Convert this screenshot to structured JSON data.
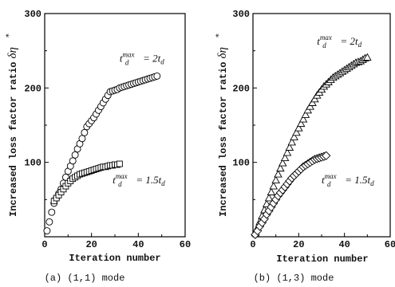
{
  "chart_data": [
    {
      "type": "scatter",
      "panel": "a",
      "caption": "(a) (1,1) mode",
      "xlabel": "Iteration number",
      "ylabel": "Increased loss factor ratio",
      "ylabel_symbol": "δη",
      "ylabel_mark": "*",
      "xlim": [
        0,
        60
      ],
      "ylim": [
        0,
        300
      ],
      "xticks": [
        "0",
        "20",
        "40",
        "60"
      ],
      "yticks": [
        "100",
        "200",
        "300"
      ],
      "grid": false,
      "series": [
        {
          "marker": "circle",
          "annotation_label": "2t_d",
          "x": [
            1,
            2,
            3,
            4,
            5,
            6,
            7,
            8,
            9,
            10,
            11,
            12,
            13,
            14,
            15,
            16,
            17,
            18,
            19,
            20,
            21,
            22,
            23,
            24,
            25,
            26,
            27,
            28,
            29,
            30,
            31,
            32,
            33,
            34,
            35,
            36,
            37,
            38,
            39,
            40,
            41,
            42,
            43,
            44,
            45,
            46,
            47,
            48
          ],
          "y": [
            8,
            20,
            33,
            45,
            52,
            58,
            64,
            72,
            80,
            88,
            95,
            102,
            110,
            118,
            125,
            132,
            140,
            148,
            152,
            156,
            160,
            165,
            170,
            175,
            180,
            185,
            190,
            195,
            196,
            197,
            198,
            200,
            201,
            202,
            203,
            204,
            205,
            206,
            207,
            208,
            209,
            210,
            211,
            212,
            213,
            214,
            215,
            216
          ]
        },
        {
          "marker": "square",
          "annotation_label": "1.5t_d",
          "x": [
            4,
            5,
            6,
            7,
            8,
            9,
            10,
            11,
            12,
            13,
            14,
            15,
            16,
            17,
            18,
            19,
            20,
            21,
            22,
            23,
            24,
            25,
            26,
            27,
            28,
            29,
            30,
            31,
            32
          ],
          "y": [
            48,
            52,
            56,
            60,
            64,
            68,
            72,
            75,
            78,
            80,
            82,
            84,
            85,
            86,
            87,
            88,
            89,
            90,
            91,
            92,
            93,
            94,
            94,
            95,
            96,
            96,
            97,
            97,
            98
          ]
        }
      ],
      "annotations": [
        {
          "base": "t",
          "sub": "d",
          "sup": "max",
          "rhs": "= 2t",
          "rhs_sub": "d",
          "x": 32,
          "y": 235
        },
        {
          "base": "t",
          "sub": "d",
          "sup": "max",
          "rhs": "= 1.5t",
          "rhs_sub": "d",
          "x": 29,
          "y": 72
        }
      ]
    },
    {
      "type": "scatter",
      "panel": "b",
      "caption": "(b) (1,3) mode",
      "xlabel": "Iteration number",
      "ylabel": "Increased loss factor ratio",
      "ylabel_symbol": "δη",
      "ylabel_mark": "*",
      "xlim": [
        0,
        60
      ],
      "ylim": [
        0,
        300
      ],
      "xticks": [
        "0",
        "20",
        "40",
        "60"
      ],
      "yticks": [
        "100",
        "200",
        "300"
      ],
      "grid": false,
      "series": [
        {
          "marker": "triangle",
          "annotation_label": "2t_d",
          "x": [
            1,
            2,
            3,
            4,
            5,
            6,
            7,
            8,
            9,
            10,
            11,
            12,
            13,
            14,
            15,
            16,
            17,
            18,
            19,
            20,
            21,
            22,
            23,
            24,
            25,
            26,
            27,
            28,
            29,
            30,
            31,
            32,
            33,
            34,
            35,
            36,
            37,
            38,
            39,
            40,
            41,
            42,
            43,
            44,
            45,
            46,
            47,
            48,
            49,
            50
          ],
          "y": [
            5,
            12,
            20,
            28,
            36,
            44,
            52,
            60,
            68,
            76,
            84,
            92,
            99,
            106,
            113,
            120,
            127,
            134,
            140,
            146,
            152,
            158,
            164,
            170,
            175,
            180,
            185,
            190,
            194,
            198,
            202,
            205,
            208,
            211,
            214,
            216,
            218,
            220,
            222,
            224,
            226,
            228,
            230,
            232,
            234,
            235,
            236,
            238,
            240,
            241
          ]
        },
        {
          "marker": "diamond",
          "annotation_label": "1.5t_d",
          "x": [
            1,
            2,
            3,
            4,
            5,
            6,
            7,
            8,
            9,
            10,
            11,
            12,
            13,
            14,
            15,
            16,
            17,
            18,
            19,
            20,
            21,
            22,
            23,
            24,
            25,
            26,
            27,
            28,
            29,
            30,
            31,
            32
          ],
          "y": [
            3,
            8,
            14,
            19,
            24,
            30,
            35,
            40,
            45,
            50,
            55,
            59,
            63,
            67,
            71,
            75,
            79,
            82,
            85,
            88,
            91,
            94,
            96,
            98,
            100,
            102,
            104,
            105,
            106,
            107,
            108,
            109
          ]
        }
      ],
      "annotations": [
        {
          "base": "t",
          "sub": "d",
          "sup": "max",
          "rhs": "= 2t",
          "rhs_sub": "d",
          "x": 28,
          "y": 258
        },
        {
          "base": "t",
          "sub": "d",
          "sup": "max",
          "rhs": "= 1.5t",
          "rhs_sub": "d",
          "x": 30,
          "y": 72
        }
      ]
    }
  ]
}
